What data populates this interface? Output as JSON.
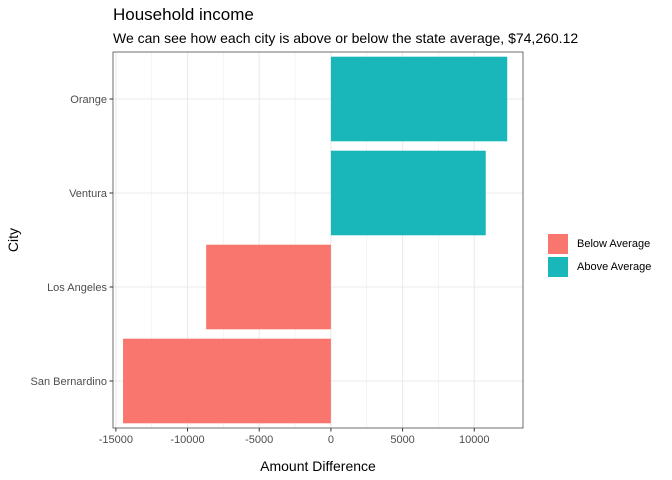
{
  "chart_data": {
    "type": "bar",
    "orientation": "horizontal",
    "title": "Household income",
    "subtitle": "We can see how each city is above or below the state average, $74,260.12",
    "xlabel": "Amount Difference",
    "ylabel": "City",
    "categories": [
      "San Bernardino",
      "Los Angeles",
      "Ventura",
      "Orange"
    ],
    "values": [
      -14500,
      -8700,
      10800,
      12300
    ],
    "groups": [
      "Below Average",
      "Below Average",
      "Above Average",
      "Above Average"
    ],
    "xlim": [
      -15200,
      13400
    ],
    "xticks": [
      -15000,
      -10000,
      -5000,
      0,
      5000,
      10000
    ],
    "xtick_labels": [
      "-15000",
      "-10000",
      "-5000",
      "0",
      "5000",
      "10000"
    ],
    "grid": true,
    "legend_position": "right",
    "legend": [
      {
        "label": "Below Average",
        "color": "#F8766D"
      },
      {
        "label": "Above Average",
        "color": "#00BFC4"
      }
    ],
    "colors": {
      "Below Average": "#F8766D",
      "Above Average": "#1AB7BA"
    }
  }
}
